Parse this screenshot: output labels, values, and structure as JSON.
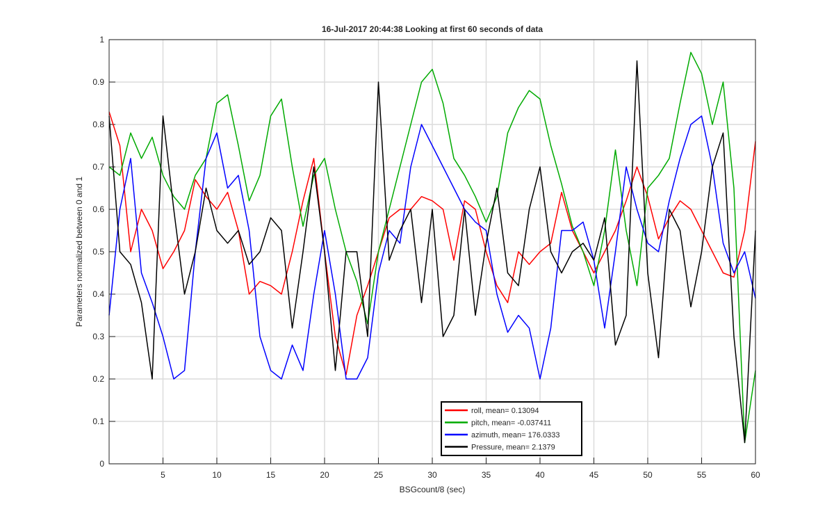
{
  "chart_data": {
    "type": "line",
    "title": "16-Jul-2017 20:44:38 Looking at first 60 seconds of data",
    "x_label": "BSGcount/8 (sec)",
    "y_label": "Parameters normalized between 0 and 1",
    "x": [
      0,
      1,
      2,
      3,
      4,
      5,
      6,
      7,
      8,
      9,
      10,
      11,
      12,
      13,
      14,
      15,
      16,
      17,
      18,
      19,
      20,
      21,
      22,
      23,
      24,
      25,
      26,
      27,
      28,
      29,
      30,
      31,
      32,
      33,
      34,
      35,
      36,
      37,
      38,
      39,
      40,
      41,
      42,
      43,
      44,
      45,
      46,
      47,
      48,
      49,
      50,
      51,
      52,
      53,
      54,
      55,
      56,
      57,
      58,
      59,
      60
    ],
    "series": [
      {
        "name": "roll, mean= 0.13094",
        "color": "#ff0000",
        "values": [
          0.83,
          0.75,
          0.5,
          0.6,
          0.55,
          0.46,
          0.5,
          0.55,
          0.67,
          0.63,
          0.6,
          0.64,
          0.55,
          0.4,
          0.43,
          0.42,
          0.4,
          0.5,
          0.62,
          0.72,
          0.5,
          0.3,
          0.21,
          0.35,
          0.42,
          0.5,
          0.58,
          0.6,
          0.6,
          0.63,
          0.62,
          0.6,
          0.48,
          0.62,
          0.6,
          0.5,
          0.42,
          0.38,
          0.5,
          0.47,
          0.5,
          0.52,
          0.64,
          0.55,
          0.5,
          0.45,
          0.5,
          0.55,
          0.62,
          0.7,
          0.63,
          0.53,
          0.58,
          0.62,
          0.6,
          0.55,
          0.5,
          0.45,
          0.44,
          0.55,
          0.76
        ]
      },
      {
        "name": "pitch, mean= -0.037411",
        "color": "#00aa00",
        "values": [
          0.7,
          0.68,
          0.78,
          0.72,
          0.77,
          0.68,
          0.63,
          0.6,
          0.68,
          0.72,
          0.85,
          0.87,
          0.75,
          0.62,
          0.68,
          0.82,
          0.86,
          0.7,
          0.56,
          0.68,
          0.72,
          0.6,
          0.5,
          0.43,
          0.33,
          0.5,
          0.6,
          0.7,
          0.8,
          0.9,
          0.93,
          0.85,
          0.72,
          0.68,
          0.63,
          0.57,
          0.63,
          0.78,
          0.84,
          0.88,
          0.86,
          0.75,
          0.66,
          0.56,
          0.5,
          0.42,
          0.55,
          0.74,
          0.55,
          0.42,
          0.65,
          0.68,
          0.72,
          0.85,
          0.97,
          0.92,
          0.8,
          0.9,
          0.65,
          0.05,
          0.22
        ]
      },
      {
        "name": "azimuth, mean= 176.0333",
        "color": "#0000ff",
        "values": [
          0.35,
          0.6,
          0.72,
          0.45,
          0.38,
          0.3,
          0.2,
          0.22,
          0.5,
          0.72,
          0.78,
          0.65,
          0.68,
          0.55,
          0.3,
          0.22,
          0.2,
          0.28,
          0.22,
          0.4,
          0.55,
          0.4,
          0.2,
          0.2,
          0.25,
          0.45,
          0.55,
          0.52,
          0.7,
          0.8,
          0.75,
          0.7,
          0.65,
          0.6,
          0.57,
          0.55,
          0.4,
          0.31,
          0.35,
          0.32,
          0.2,
          0.32,
          0.55,
          0.55,
          0.57,
          0.48,
          0.32,
          0.5,
          0.7,
          0.6,
          0.52,
          0.5,
          0.62,
          0.72,
          0.8,
          0.82,
          0.7,
          0.52,
          0.45,
          0.5,
          0.39
        ]
      },
      {
        "name": "Pressure, mean= 2.1379",
        "color": "#000000",
        "values": [
          0.82,
          0.5,
          0.47,
          0.38,
          0.2,
          0.82,
          0.6,
          0.4,
          0.5,
          0.65,
          0.55,
          0.52,
          0.55,
          0.47,
          0.5,
          0.58,
          0.55,
          0.32,
          0.5,
          0.7,
          0.5,
          0.22,
          0.5,
          0.5,
          0.3,
          0.9,
          0.48,
          0.55,
          0.6,
          0.38,
          0.6,
          0.3,
          0.35,
          0.6,
          0.35,
          0.52,
          0.65,
          0.45,
          0.42,
          0.6,
          0.7,
          0.5,
          0.45,
          0.5,
          0.52,
          0.48,
          0.58,
          0.28,
          0.35,
          0.95,
          0.45,
          0.25,
          0.6,
          0.55,
          0.37,
          0.5,
          0.7,
          0.78,
          0.3,
          0.05,
          0.55
        ]
      }
    ],
    "xlim": [
      0,
      60
    ],
    "xticks": [
      5,
      10,
      15,
      20,
      25,
      30,
      35,
      40,
      45,
      50,
      55,
      60
    ],
    "ylim": [
      0,
      1
    ],
    "yticks": [
      0,
      0.1,
      0.2,
      0.3,
      0.4,
      0.5,
      0.6,
      0.7,
      0.8,
      0.9,
      1
    ],
    "grid": true,
    "legend_loc": "lower center"
  }
}
